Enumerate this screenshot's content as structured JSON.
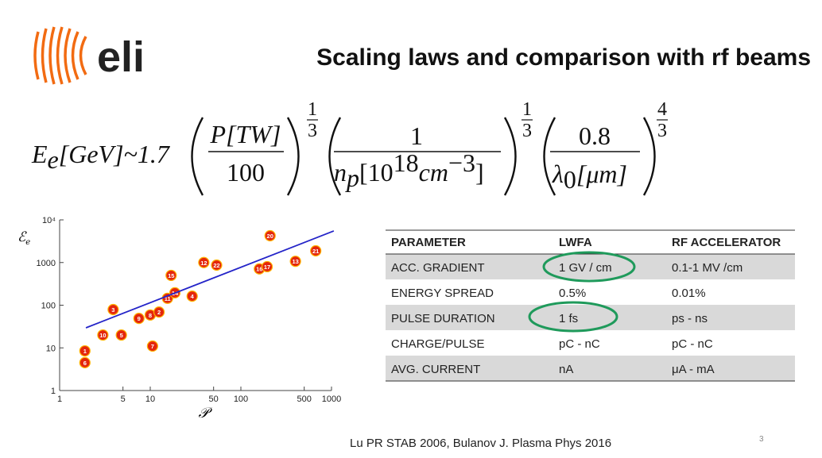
{
  "header": {
    "logo": "eli",
    "title": "Scaling laws and comparison with rf beams"
  },
  "formula": {
    "lhs": {
      "E": "E",
      "sub": "e",
      "rest": "[GeV]~1.7"
    },
    "f1": {
      "num": "P[TW]",
      "den": "100",
      "exp": {
        "num": "1",
        "den": "3"
      }
    },
    "f2": {
      "num": "1",
      "den": {
        "n": "n",
        "sub": "p",
        "a": "[10",
        "sup": "18",
        "b": "cm",
        "sup2": "−3",
        "c": "]"
      },
      "exp": {
        "num": "1",
        "den": "3"
      }
    },
    "f3": {
      "num": "0.8",
      "den": {
        "l": "λ",
        "sub": "0",
        "a": "[μm]"
      },
      "exp": {
        "num": "4",
        "den": "3"
      }
    }
  },
  "chart_data": {
    "type": "scatter",
    "xlabel": "𝒫",
    "ylabel": {
      "main": "ℰ",
      "sub": "e"
    },
    "xscale": "log",
    "yscale": "log",
    "xlim": [
      1,
      1000
    ],
    "ylim": [
      1,
      10000
    ],
    "xticks": [
      1,
      5,
      10,
      50,
      100,
      500,
      1000
    ],
    "yticks": [
      1,
      10,
      100,
      1000,
      {
        "value": 10000,
        "label": "10⁴"
      }
    ],
    "series": [
      {
        "type": "scatter",
        "color": "#e4260d",
        "x": [
          1.9,
          1.9,
          3.0,
          3.9,
          4.8,
          7.5,
          10.6,
          10,
          12.5,
          15.5,
          17,
          18.7,
          29,
          39,
          54,
          160,
          195,
          210,
          400,
          670
        ],
        "values": [
          8.5,
          4.5,
          20,
          79,
          20,
          49,
          11,
          59,
          69,
          145,
          500,
          195,
          163,
          1000,
          870,
          710,
          800,
          4250,
          1070,
          1880
        ],
        "labels": [
          "1",
          "6",
          "10",
          "3",
          "5",
          "9",
          "7",
          "8",
          "2",
          "11",
          "15",
          "14",
          "4",
          "12",
          "22",
          "16",
          "17",
          "20",
          "13",
          "21"
        ]
      },
      {
        "type": "line",
        "color": "#2424c8",
        "x": [
          1.95,
          1060
        ],
        "values": [
          29.5,
          5500
        ]
      }
    ]
  },
  "table": {
    "header": [
      "PARAMETER",
      "LWFA",
      "RF ACCELERATOR"
    ],
    "rows": [
      [
        "ACC. GRADIENT",
        "1 GV / cm",
        "0.1-1 MV /cm"
      ],
      [
        "ENERGY SPREAD",
        "0.5%",
        "0.01%"
      ],
      [
        "PULSE DURATION",
        "1 fs",
        "ps - ns"
      ],
      [
        "CHARGE/PULSE",
        "pC - nC",
        "pC - nC"
      ],
      [
        "AVG. CURRENT",
        "nA",
        "μA - mA"
      ]
    ]
  },
  "footer": {
    "citation": "Lu PR STAB 2006, Bulanov J. Plasma Phys 2016",
    "page": "3"
  }
}
